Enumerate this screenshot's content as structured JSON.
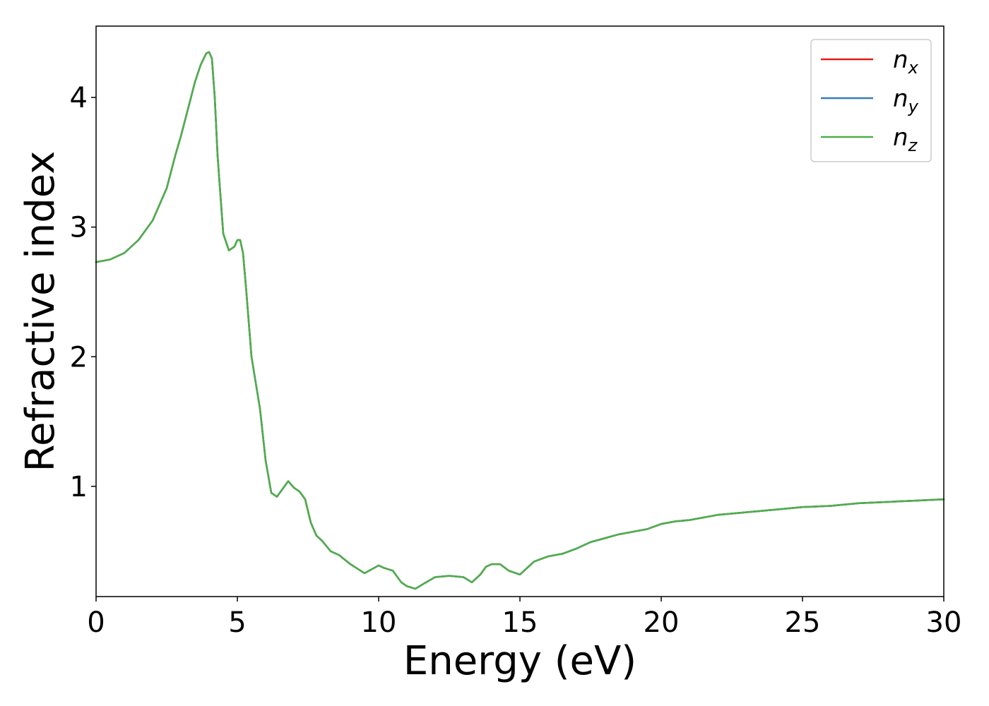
{
  "chart_data": {
    "type": "line",
    "title": "",
    "xlabel": "Energy (eV)",
    "ylabel": "Refractive index",
    "xlim": [
      0,
      30
    ],
    "ylim": [
      0.15,
      4.55
    ],
    "x_ticks": [
      0,
      5,
      10,
      15,
      20,
      25,
      30
    ],
    "y_ticks": [
      1,
      2,
      3,
      4
    ],
    "x_tick_labels": [
      "0",
      "5",
      "10",
      "15",
      "20",
      "25",
      "30"
    ],
    "y_tick_labels": [
      "1",
      "2",
      "3",
      "4"
    ],
    "grid": false,
    "legend_position": "top-right",
    "x": [
      0,
      0.5,
      1,
      1.5,
      2,
      2.5,
      2.8,
      3,
      3.3,
      3.5,
      3.7,
      3.9,
      4.0,
      4.1,
      4.2,
      4.3,
      4.4,
      4.5,
      4.7,
      4.9,
      5.0,
      5.1,
      5.2,
      5.3,
      5.5,
      5.8,
      6.0,
      6.2,
      6.4,
      6.6,
      6.8,
      7.0,
      7.2,
      7.4,
      7.6,
      7.8,
      8.0,
      8.3,
      8.6,
      9.0,
      9.5,
      10.0,
      10.2,
      10.5,
      10.8,
      11.0,
      11.3,
      11.6,
      12.0,
      12.5,
      13.0,
      13.3,
      13.6,
      13.8,
      14.0,
      14.3,
      14.6,
      15.0,
      15.5,
      16.0,
      16.5,
      17.0,
      17.5,
      18.0,
      18.5,
      19.0,
      19.5,
      20.0,
      20.5,
      21.0,
      22.0,
      23.0,
      24.0,
      25.0,
      26.0,
      27.0,
      28.0,
      29.0,
      30.0
    ],
    "series": [
      {
        "name": "n_x",
        "label_base": "n",
        "label_sub": "x",
        "color": "#e41a1c",
        "values": [
          2.73,
          2.75,
          2.8,
          2.9,
          3.05,
          3.3,
          3.55,
          3.7,
          3.95,
          4.12,
          4.25,
          4.34,
          4.35,
          4.3,
          4.0,
          3.55,
          3.25,
          2.95,
          2.82,
          2.85,
          2.9,
          2.9,
          2.8,
          2.55,
          2.0,
          1.6,
          1.2,
          0.95,
          0.92,
          0.98,
          1.04,
          0.99,
          0.96,
          0.9,
          0.72,
          0.62,
          0.58,
          0.5,
          0.47,
          0.4,
          0.33,
          0.39,
          0.37,
          0.35,
          0.26,
          0.23,
          0.21,
          0.25,
          0.3,
          0.31,
          0.3,
          0.26,
          0.32,
          0.38,
          0.4,
          0.4,
          0.35,
          0.32,
          0.42,
          0.46,
          0.48,
          0.52,
          0.57,
          0.6,
          0.63,
          0.65,
          0.67,
          0.71,
          0.73,
          0.74,
          0.78,
          0.8,
          0.82,
          0.84,
          0.85,
          0.87,
          0.88,
          0.89,
          0.9
        ]
      },
      {
        "name": "n_y",
        "label_base": "n",
        "label_sub": "y",
        "color": "#377eb8",
        "values": [
          2.73,
          2.75,
          2.8,
          2.9,
          3.05,
          3.3,
          3.55,
          3.7,
          3.95,
          4.12,
          4.25,
          4.34,
          4.35,
          4.3,
          4.0,
          3.55,
          3.25,
          2.95,
          2.82,
          2.85,
          2.9,
          2.9,
          2.8,
          2.55,
          2.0,
          1.6,
          1.2,
          0.95,
          0.92,
          0.98,
          1.04,
          0.99,
          0.96,
          0.9,
          0.72,
          0.62,
          0.58,
          0.5,
          0.47,
          0.4,
          0.33,
          0.39,
          0.37,
          0.35,
          0.26,
          0.23,
          0.21,
          0.25,
          0.3,
          0.31,
          0.3,
          0.26,
          0.32,
          0.38,
          0.4,
          0.4,
          0.35,
          0.32,
          0.42,
          0.46,
          0.48,
          0.52,
          0.57,
          0.6,
          0.63,
          0.65,
          0.67,
          0.71,
          0.73,
          0.74,
          0.78,
          0.8,
          0.82,
          0.84,
          0.85,
          0.87,
          0.88,
          0.89,
          0.9
        ]
      },
      {
        "name": "n_z",
        "label_base": "n",
        "label_sub": "z",
        "color": "#4daf4a",
        "values": [
          2.73,
          2.75,
          2.8,
          2.9,
          3.05,
          3.3,
          3.55,
          3.7,
          3.95,
          4.12,
          4.25,
          4.34,
          4.35,
          4.3,
          4.0,
          3.55,
          3.25,
          2.95,
          2.82,
          2.85,
          2.9,
          2.9,
          2.8,
          2.55,
          2.0,
          1.6,
          1.2,
          0.95,
          0.92,
          0.98,
          1.04,
          0.99,
          0.96,
          0.9,
          0.72,
          0.62,
          0.58,
          0.5,
          0.47,
          0.4,
          0.33,
          0.39,
          0.37,
          0.35,
          0.26,
          0.23,
          0.21,
          0.25,
          0.3,
          0.31,
          0.3,
          0.26,
          0.32,
          0.38,
          0.4,
          0.4,
          0.35,
          0.32,
          0.42,
          0.46,
          0.48,
          0.52,
          0.57,
          0.6,
          0.63,
          0.65,
          0.67,
          0.71,
          0.73,
          0.74,
          0.78,
          0.8,
          0.82,
          0.84,
          0.85,
          0.87,
          0.88,
          0.89,
          0.9
        ]
      }
    ]
  }
}
